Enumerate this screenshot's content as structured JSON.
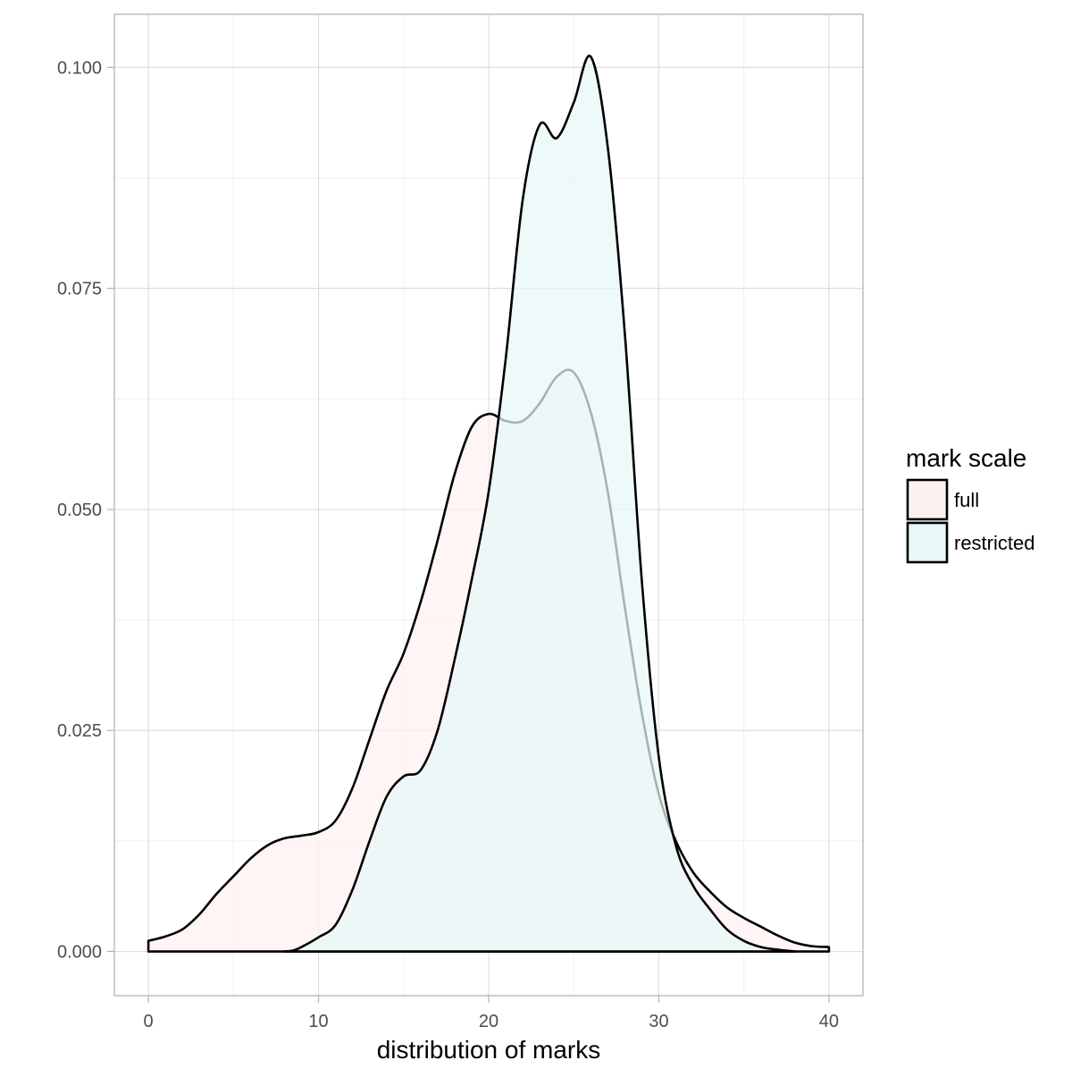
{
  "chart_data": {
    "type": "area",
    "title": "",
    "xlabel": "distribution of marks",
    "ylabel": "",
    "xlim": [
      -2,
      42
    ],
    "ylim": [
      -0.005,
      0.106
    ],
    "x_ticks": [
      0,
      10,
      20,
      30,
      40
    ],
    "x_tick_labels": [
      "0",
      "10",
      "20",
      "30",
      "40"
    ],
    "y_ticks": [
      0,
      0.025,
      0.05,
      0.075,
      0.1
    ],
    "y_tick_labels": [
      "0.000",
      "0.025",
      "0.050",
      "0.075",
      "0.100"
    ],
    "grid": true,
    "legend": {
      "title": "mark scale",
      "placement": "right"
    },
    "series": [
      {
        "name": "full",
        "fill": "#fdf1f0",
        "points": [
          [
            0,
            0.0012
          ],
          [
            1,
            0.0017
          ],
          [
            2,
            0.0025
          ],
          [
            3,
            0.0042
          ],
          [
            4,
            0.0065
          ],
          [
            5,
            0.0085
          ],
          [
            6,
            0.0105
          ],
          [
            7,
            0.012
          ],
          [
            8,
            0.0128
          ],
          [
            9,
            0.0131
          ],
          [
            10,
            0.0135
          ],
          [
            11,
            0.0148
          ],
          [
            12,
            0.0185
          ],
          [
            13,
            0.024
          ],
          [
            14,
            0.0295
          ],
          [
            15,
            0.0337
          ],
          [
            16,
            0.0395
          ],
          [
            17,
            0.0465
          ],
          [
            18,
            0.054
          ],
          [
            19,
            0.0593
          ],
          [
            20,
            0.0608
          ],
          [
            21,
            0.06
          ],
          [
            22,
            0.06
          ],
          [
            23,
            0.062
          ],
          [
            24,
            0.065
          ],
          [
            25,
            0.0655
          ],
          [
            26,
            0.061
          ],
          [
            27,
            0.052
          ],
          [
            28,
            0.039
          ],
          [
            29,
            0.027
          ],
          [
            30,
            0.0178
          ],
          [
            31,
            0.0125
          ],
          [
            32,
            0.009
          ],
          [
            33,
            0.0068
          ],
          [
            34,
            0.005
          ],
          [
            35,
            0.0038
          ],
          [
            36,
            0.0028
          ],
          [
            37,
            0.0018
          ],
          [
            38,
            0.001
          ],
          [
            39,
            0.0006
          ],
          [
            40,
            0.0005
          ]
        ]
      },
      {
        "name": "restricted",
        "fill": "#e8f8f8",
        "points": [
          [
            8,
            0
          ],
          [
            8.5,
            0.0001
          ],
          [
            9,
            0.0005
          ],
          [
            10,
            0.0016
          ],
          [
            11,
            0.003
          ],
          [
            12,
            0.007
          ],
          [
            13,
            0.0125
          ],
          [
            14,
            0.0175
          ],
          [
            15,
            0.0198
          ],
          [
            16,
            0.0205
          ],
          [
            17,
            0.025
          ],
          [
            18,
            0.033
          ],
          [
            19,
            0.042
          ],
          [
            20,
            0.052
          ],
          [
            21,
            0.067
          ],
          [
            22,
            0.085
          ],
          [
            23,
            0.0935
          ],
          [
            24,
            0.092
          ],
          [
            25,
            0.096
          ],
          [
            26,
            0.1012
          ],
          [
            27,
            0.091
          ],
          [
            28,
            0.07
          ],
          [
            29,
            0.042
          ],
          [
            30,
            0.022
          ],
          [
            31,
            0.012
          ],
          [
            32,
            0.0075
          ],
          [
            33,
            0.0048
          ],
          [
            34,
            0.0025
          ],
          [
            35,
            0.0012
          ],
          [
            36,
            0.0005
          ],
          [
            37,
            0.0002
          ],
          [
            38,
            0
          ]
        ]
      }
    ]
  }
}
